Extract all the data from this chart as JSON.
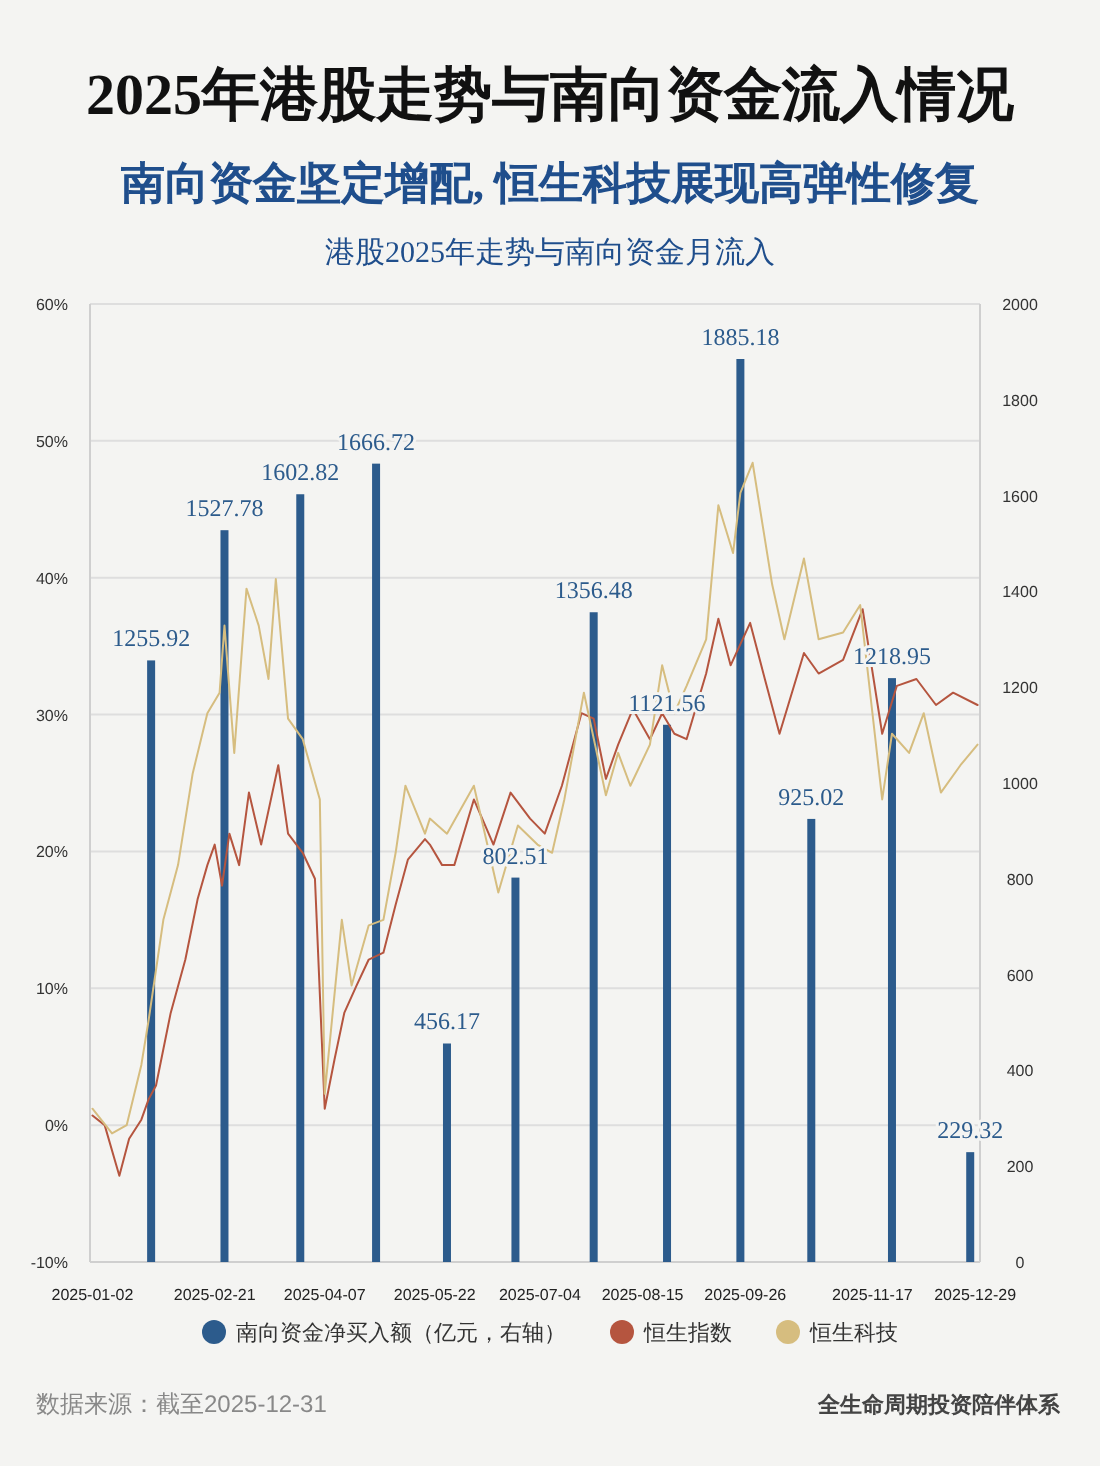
{
  "chart_data": {
    "type": "bar",
    "title": "2025年港股走势与南向资金流入情况",
    "subtitle": "南向资金坚定增配, 恒生科技展现高弹性修复",
    "annotations": [
      "港股2025年走势与南向资金月流入",
      "数据来源：截至2025-12-31",
      "全生命周期投资陪伴体系"
    ],
    "xlim": [
      "2025-01-01",
      "2025-12-31"
    ],
    "xticks": [
      {
        "value": "2025-01-02",
        "label": "2025-01-02"
      },
      {
        "value": "2025-02-21",
        "label": "2025-02-21"
      },
      {
        "value": "2025-04-07",
        "label": "2025-04-07"
      },
      {
        "value": "2025-05-22",
        "label": "2025-05-22"
      },
      {
        "value": "2025-07-04",
        "label": "2025-07-04"
      },
      {
        "value": "2025-08-15",
        "label": "2025-08-15"
      },
      {
        "value": "2025-09-26",
        "label": "2025-09-26"
      },
      {
        "value": "2025-11-17",
        "label": "2025-11-17"
      },
      {
        "value": "2025-12-29",
        "label": "2025-12-29"
      }
    ],
    "ylim": [
      -10,
      60
    ],
    "yticks": [
      {
        "value": -10,
        "label": "-10%"
      },
      {
        "value": 0,
        "label": "0%"
      },
      {
        "value": 10,
        "label": "10%"
      },
      {
        "value": 20,
        "label": "20%"
      },
      {
        "value": 30,
        "label": "30%"
      },
      {
        "value": 40,
        "label": "40%"
      },
      {
        "value": 50,
        "label": "50%"
      },
      {
        "value": 60,
        "label": "60%"
      }
    ],
    "y2lim": [
      0,
      2000
    ],
    "y2ticks": [
      0,
      200,
      400,
      600,
      800,
      1000,
      1200,
      1400,
      1600,
      1800,
      2000
    ],
    "grid": "y",
    "legend": "bottom",
    "series": [
      {
        "name": "南向资金净买入额（亿元，右轴）",
        "axis": "y2",
        "color": "#2c5b8c",
        "data_labels": true,
        "x": [
          "2025-01-26",
          "2025-02-25",
          "2025-03-28",
          "2025-04-28",
          "2025-05-27",
          "2025-06-24",
          "2025-07-26",
          "2025-08-25",
          "2025-09-24",
          "2025-10-23",
          "2025-11-25",
          "2025-12-27"
        ],
        "values": [
          1255.92,
          1527.78,
          1602.82,
          1666.72,
          456.17,
          802.51,
          1356.48,
          1121.56,
          1885.18,
          925.02,
          1218.95,
          229.32
        ]
      },
      {
        "name": "恒生指数",
        "type": "line",
        "color": "#b5553f",
        "x": [
          "2025-01-02",
          "2025-01-07",
          "2025-01-13",
          "2025-01-17",
          "2025-01-22",
          "2025-01-25",
          "2025-01-28",
          "2025-02-03",
          "2025-02-09",
          "2025-02-14",
          "2025-02-18",
          "2025-02-21",
          "2025-02-24",
          "2025-02-27",
          "2025-03-03",
          "2025-03-07",
          "2025-03-12",
          "2025-03-19",
          "2025-03-23",
          "2025-03-29",
          "2025-04-03",
          "2025-04-07",
          "2025-04-11",
          "2025-04-15",
          "2025-04-20",
          "2025-04-25",
          "2025-05-01",
          "2025-05-06",
          "2025-05-11",
          "2025-05-18",
          "2025-05-20",
          "2025-05-25",
          "2025-05-30",
          "2025-06-07",
          "2025-06-15",
          "2025-06-22",
          "2025-06-30",
          "2025-07-06",
          "2025-07-13",
          "2025-07-21",
          "2025-07-26",
          "2025-07-31",
          "2025-08-05",
          "2025-08-11",
          "2025-08-18",
          "2025-08-23",
          "2025-08-28",
          "2025-09-02",
          "2025-09-10",
          "2025-09-15",
          "2025-09-20",
          "2025-09-28",
          "2025-10-04",
          "2025-10-10",
          "2025-10-20",
          "2025-10-26",
          "2025-11-05",
          "2025-11-13",
          "2025-11-21",
          "2025-11-27",
          "2025-12-05",
          "2025-12-13",
          "2025-12-20",
          "2025-12-30"
        ],
        "values": [
          0.7,
          0,
          -3.7,
          -1,
          0.4,
          1.9,
          2.9,
          8.2,
          12.1,
          16.5,
          19,
          20.5,
          17.5,
          21.3,
          19,
          24.3,
          20.5,
          26.3,
          21.3,
          19.9,
          18,
          1.2,
          4.8,
          8.2,
          10.2,
          12.1,
          12.6,
          16.1,
          19.4,
          20.9,
          20.5,
          19,
          19,
          23.8,
          20.5,
          24.3,
          22.4,
          21.3,
          24.8,
          30.1,
          29.7,
          25.3,
          27.8,
          30.4,
          28.2,
          30.1,
          28.6,
          28.2,
          33,
          37,
          33.6,
          36.7,
          32.6,
          28.6,
          34.5,
          33,
          34,
          37.7,
          28.6,
          32.1,
          32.6,
          30.7,
          31.6,
          30.7
        ]
      },
      {
        "name": "恒生科技",
        "type": "line",
        "color": "#d6bd7f",
        "x": [
          "2025-01-02",
          "2025-01-10",
          "2025-01-16",
          "2025-01-22",
          "2025-01-25",
          "2025-01-31",
          "2025-02-06",
          "2025-02-12",
          "2025-02-18",
          "2025-02-23",
          "2025-02-25",
          "2025-03-01",
          "2025-03-06",
          "2025-03-11",
          "2025-03-15",
          "2025-03-18",
          "2025-03-23",
          "2025-03-29",
          "2025-04-05",
          "2025-04-07",
          "2025-04-14",
          "2025-04-18",
          "2025-04-25",
          "2025-05-01",
          "2025-05-06",
          "2025-05-10",
          "2025-05-18",
          "2025-05-20",
          "2025-05-27",
          "2025-06-07",
          "2025-06-17",
          "2025-06-25",
          "2025-07-03",
          "2025-07-09",
          "2025-07-14",
          "2025-07-22",
          "2025-07-31",
          "2025-08-05",
          "2025-08-10",
          "2025-08-18",
          "2025-08-23",
          "2025-08-28",
          "2025-09-02",
          "2025-09-10",
          "2025-09-15",
          "2025-09-21",
          "2025-09-24",
          "2025-09-29",
          "2025-10-07",
          "2025-10-12",
          "2025-10-20",
          "2025-10-26",
          "2025-11-05",
          "2025-11-12",
          "2025-11-21",
          "2025-11-25",
          "2025-12-02",
          "2025-12-08",
          "2025-12-15",
          "2025-12-23",
          "2025-12-30"
        ],
        "values": [
          1.2,
          -0.6,
          0,
          4.4,
          7.7,
          15,
          19,
          25.7,
          30.1,
          31.6,
          36.5,
          27.2,
          39.2,
          36.5,
          32.6,
          39.9,
          29.7,
          28.2,
          23.8,
          2.3,
          15,
          10.2,
          14.6,
          15,
          19.9,
          24.8,
          21.3,
          22.4,
          21.3,
          24.8,
          17,
          21.9,
          20.5,
          19.9,
          23.8,
          31.6,
          24.1,
          27.2,
          24.8,
          27.8,
          33.6,
          30.1,
          32.1,
          35.5,
          45.3,
          41.8,
          46.2,
          48.4,
          39.5,
          35.5,
          41.4,
          35.5,
          36,
          38,
          23.8,
          28.6,
          27.2,
          30.1,
          24.3,
          26.3,
          27.8
        ]
      }
    ]
  }
}
